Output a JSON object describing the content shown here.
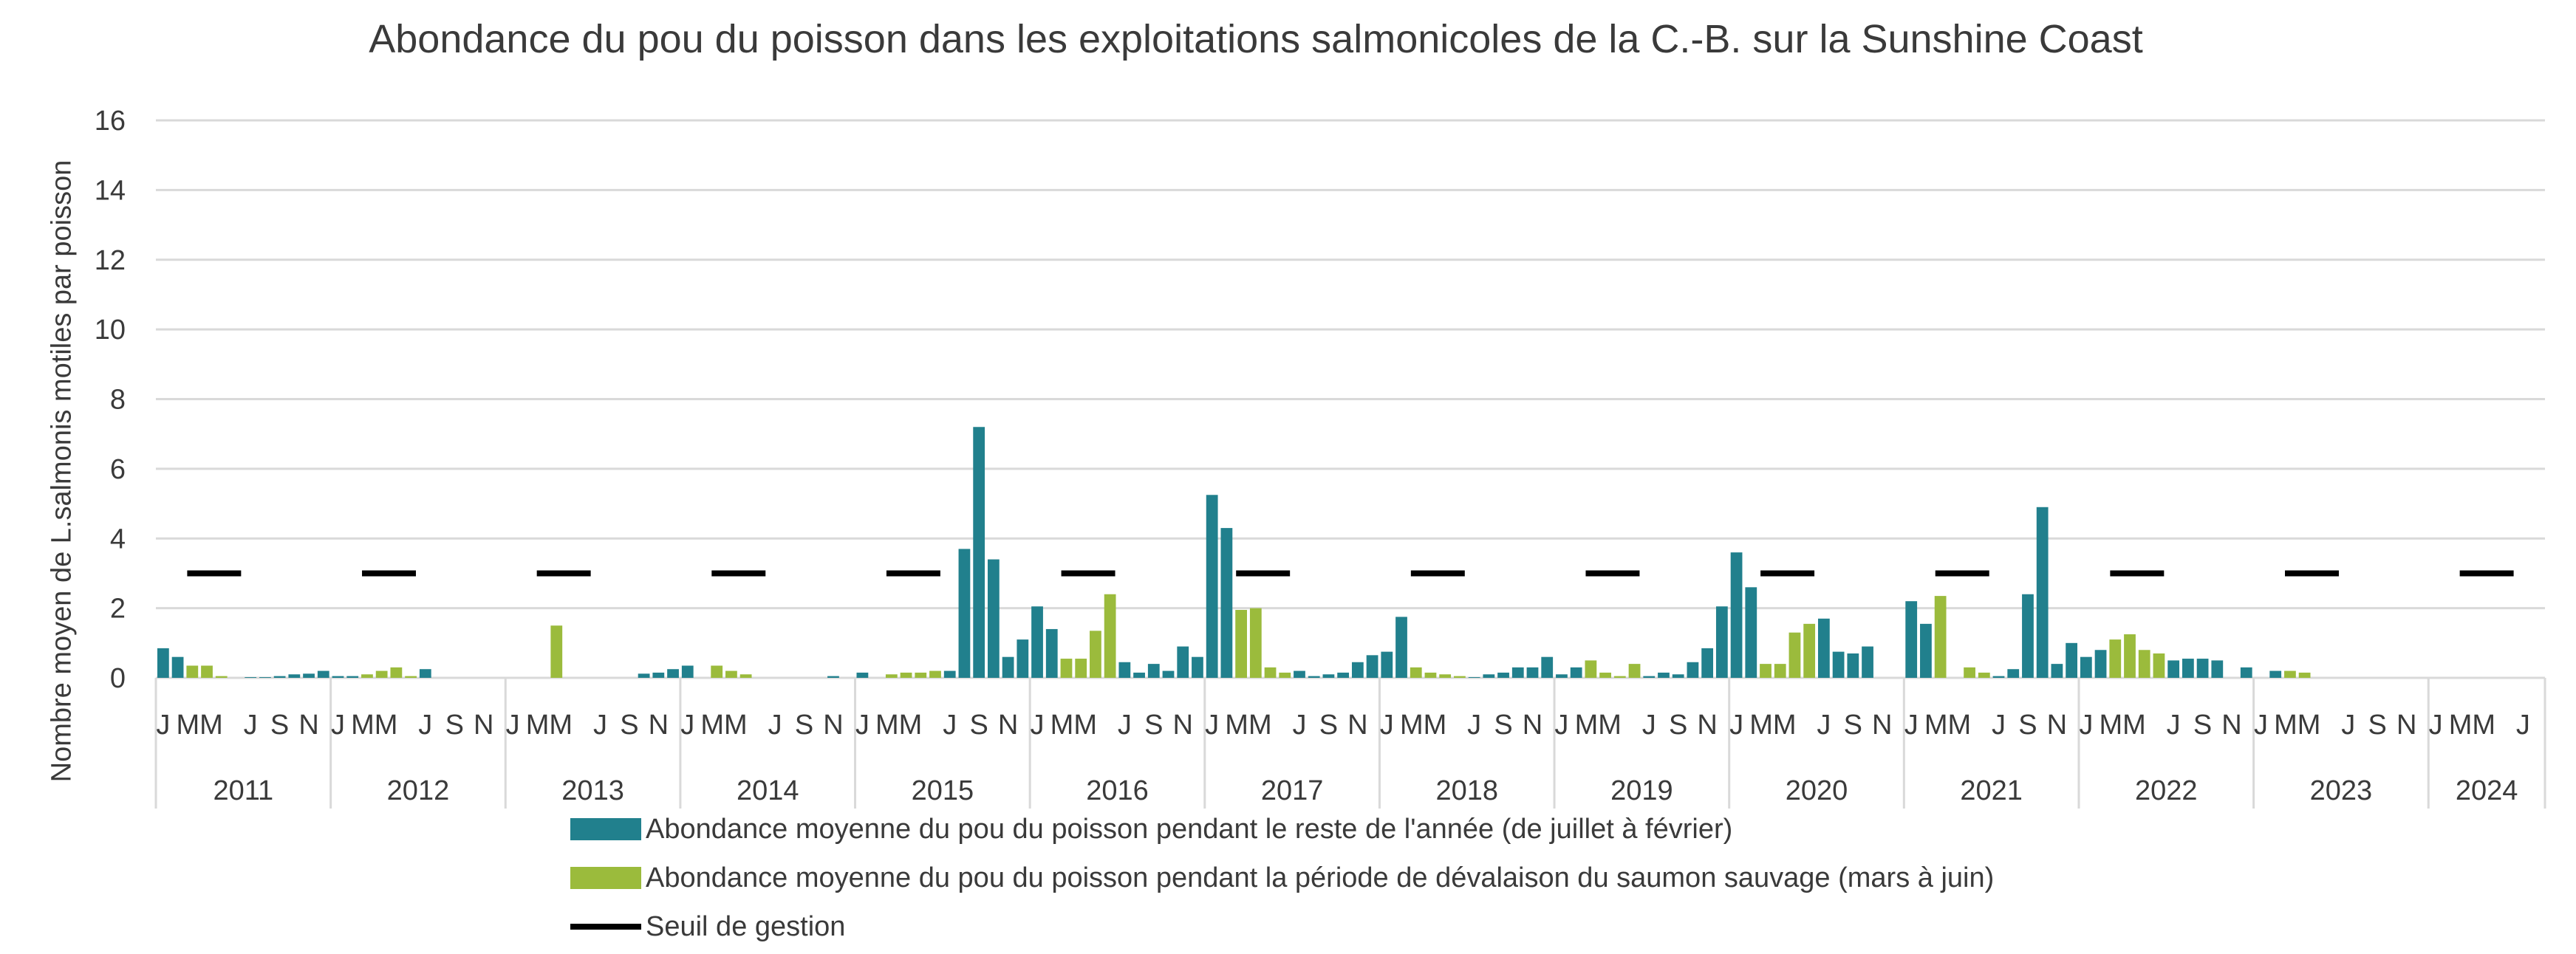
{
  "chart_data": {
    "type": "bar",
    "title": "Abondance du pou du poisson dans les exploitations salmonicoles de la C.-B. sur la Sunshine Coast",
    "ylabel": "Nombre moyen de L.salmonis motiles par poisson",
    "xlabel": "",
    "ylim": [
      0,
      16
    ],
    "yticks": [
      0,
      2,
      4,
      6,
      8,
      10,
      12,
      14,
      16
    ],
    "grid": true,
    "legend_position": "bottom",
    "years": [
      "2011",
      "2012",
      "2013",
      "2014",
      "2015",
      "2016",
      "2017",
      "2018",
      "2019",
      "2020",
      "2021",
      "2022",
      "2023",
      "2024"
    ],
    "month_tick_labels": [
      "J",
      "MM",
      "J",
      "S",
      "N"
    ],
    "month_tick_labels_2024": [
      "J",
      "MM",
      "J"
    ],
    "months_per_year": 12,
    "last_year_months": 7,
    "series": [
      {
        "name": "Abondance moyenne du pou du poisson pendant le reste de l'année (de juillet à février)",
        "color": "#21808d",
        "months": "juillet-février",
        "values": [
          [
            0.85,
            0.6,
            null,
            null,
            null,
            null,
            0.02,
            0.02,
            0.05,
            0.1,
            0.12,
            0.2
          ],
          [
            0.05,
            0.05,
            null,
            null,
            null,
            null,
            0.25,
            0.0,
            0.0,
            0.0,
            0.0,
            0.0
          ],
          [
            0.0,
            0.0,
            null,
            null,
            null,
            null,
            0.0,
            0.0,
            0.0,
            0.12,
            0.15,
            0.25
          ],
          [
            0.35,
            0.0,
            null,
            null,
            null,
            null,
            0.0,
            0.0,
            0.0,
            0.0,
            0.05,
            0.0
          ],
          [
            0.15,
            0.0,
            null,
            null,
            null,
            null,
            0.2,
            3.7,
            7.2,
            3.4,
            0.6,
            1.1
          ],
          [
            2.05,
            1.4,
            null,
            null,
            null,
            null,
            0.45,
            0.15,
            0.4,
            0.2,
            0.9,
            0.6
          ],
          [
            5.25,
            4.3,
            null,
            null,
            null,
            null,
            0.2,
            0.05,
            0.1,
            0.15,
            0.45,
            0.65
          ],
          [
            0.75,
            1.75,
            null,
            null,
            null,
            null,
            0.02,
            0.1,
            0.15,
            0.3,
            0.3,
            0.6
          ],
          [
            0.1,
            0.3,
            null,
            null,
            null,
            null,
            0.05,
            0.15,
            0.1,
            0.45,
            0.85,
            2.05
          ],
          [
            3.6,
            2.6,
            null,
            null,
            null,
            null,
            1.7,
            0.75,
            0.7,
            0.9,
            0.0,
            0.0
          ],
          [
            2.2,
            1.55,
            null,
            null,
            null,
            null,
            0.05,
            0.25,
            2.4,
            4.9,
            0.4,
            1.0
          ],
          [
            0.6,
            0.8,
            null,
            null,
            null,
            null,
            0.5,
            0.55,
            0.55,
            0.5,
            0.0,
            0.3
          ],
          [
            0.0,
            0.2,
            null,
            null,
            null,
            null,
            0.0,
            0.0,
            0.0,
            0.0,
            0.0,
            0.0
          ],
          [
            0.0,
            0.0,
            null,
            null,
            null,
            null,
            0.0
          ]
        ]
      },
      {
        "name": "Abondance moyenne du pou du poisson pendant la période de dévalaison du saumon sauvage (mars à juin)",
        "color": "#9bbb3c",
        "months": "mars-juin",
        "values": [
          [
            null,
            null,
            0.35,
            0.35,
            0.05,
            0.0,
            null,
            null,
            null,
            null,
            null,
            null
          ],
          [
            null,
            null,
            0.1,
            0.2,
            0.3,
            0.05,
            null,
            null,
            null,
            null,
            null,
            null
          ],
          [
            null,
            null,
            0.0,
            1.5,
            0.0,
            0.0,
            null,
            null,
            null,
            null,
            null,
            null
          ],
          [
            null,
            null,
            0.35,
            0.2,
            0.1,
            0.0,
            null,
            null,
            null,
            null,
            null,
            null
          ],
          [
            null,
            null,
            0.1,
            0.15,
            0.15,
            0.2,
            null,
            null,
            null,
            null,
            null,
            null
          ],
          [
            null,
            null,
            0.55,
            0.55,
            1.35,
            2.4,
            null,
            null,
            null,
            null,
            null,
            null
          ],
          [
            null,
            null,
            1.95,
            2.0,
            0.3,
            0.15,
            null,
            null,
            null,
            null,
            null,
            null
          ],
          [
            null,
            null,
            0.3,
            0.15,
            0.1,
            0.05,
            null,
            null,
            null,
            null,
            null,
            null
          ],
          [
            null,
            null,
            0.5,
            0.15,
            0.05,
            0.4,
            null,
            null,
            null,
            null,
            null,
            null
          ],
          [
            null,
            null,
            0.4,
            0.4,
            1.3,
            1.55,
            null,
            null,
            null,
            null,
            null,
            null
          ],
          [
            null,
            null,
            2.35,
            0.0,
            0.3,
            0.15,
            null,
            null,
            null,
            null,
            null,
            null
          ],
          [
            null,
            null,
            1.1,
            1.25,
            0.8,
            0.7,
            null,
            null,
            null,
            null,
            null,
            null
          ],
          [
            null,
            null,
            0.2,
            0.15,
            0.0,
            0.0,
            null,
            null,
            null,
            null,
            null,
            null
          ],
          [
            null,
            null,
            0.0,
            0.0,
            0.0,
            0.0,
            null
          ]
        ]
      },
      {
        "name": "Seuil de gestion",
        "type": "threshold",
        "color": "#000000",
        "value": 3,
        "months": "mars-juin"
      }
    ]
  }
}
